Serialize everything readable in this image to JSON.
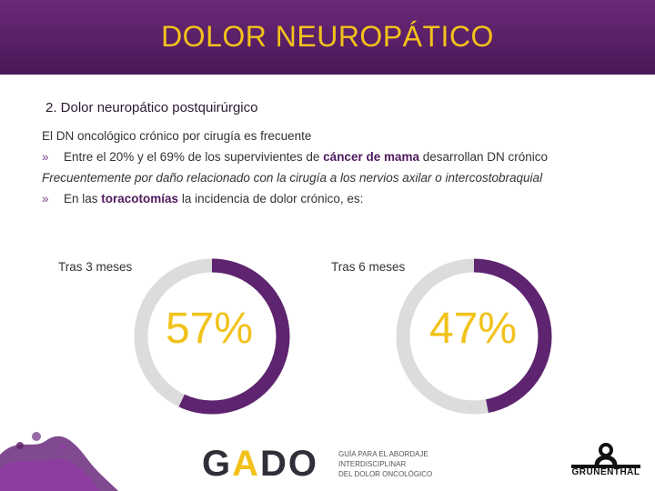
{
  "header": {
    "title": "DOLOR NEUROPÁTICO"
  },
  "section": {
    "subtitle": "2. Dolor neuropático postquirúrgico"
  },
  "body": {
    "line1": "El DN oncológico crónico por cirugía es frecuente",
    "bullet1": {
      "pre": "Entre el 20% y el 69% de los supervivientes de ",
      "highlight": "cáncer de mama",
      "post": " desarrollan DN crónico"
    },
    "line3": "Frecuentemente por daño relacionado con la cirugía a los nervios axilar o intercostobraquial",
    "bullet2": {
      "pre": "En las ",
      "highlight": "toracotomías",
      "post": " la incidencia de dolor crónico, es:"
    },
    "chevron": "»"
  },
  "donuts": [
    {
      "label": "Tras 3 meses",
      "percent_text": "57%",
      "fraction": 0.57
    },
    {
      "label": "Tras 6 meses",
      "percent_text": "47%",
      "fraction": 0.47
    }
  ],
  "colors": {
    "accent": "#5e2470",
    "track": "#dcdcdc",
    "yellow": "#f2c21b"
  },
  "footer": {
    "gado": {
      "g": "G",
      "a": "A",
      "do": "DO",
      "sub1": "GUÍA PARA EL ABORDAJE",
      "sub2": "INTERDISCIPLINAR",
      "sub3": "DEL DOLOR ONCOLÓGICO"
    },
    "grunenthal": "GRÜNENTHAL"
  }
}
